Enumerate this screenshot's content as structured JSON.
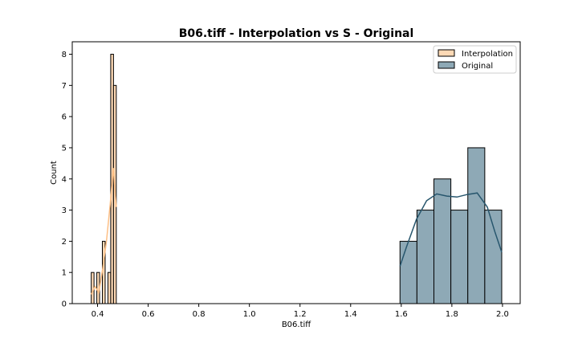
{
  "chart_data": {
    "type": "histogram",
    "title": "B06.tiff - Interpolation vs S - Original",
    "xlabel": "B06.tiff",
    "ylabel": "Count",
    "xlim": [
      0.3,
      2.07
    ],
    "ylim": [
      0,
      8.4
    ],
    "x_ticks": [
      0.4,
      0.6,
      0.8,
      1.0,
      1.2,
      1.4,
      1.6,
      1.8,
      2.0
    ],
    "x_tick_labels": [
      "0.4",
      "0.6",
      "0.8",
      "1.0",
      "1.2",
      "1.4",
      "1.6",
      "1.8",
      "2.0"
    ],
    "y_ticks": [
      0,
      1,
      2,
      3,
      4,
      5,
      6,
      7,
      8
    ],
    "y_tick_labels": [
      "0",
      "1",
      "2",
      "3",
      "4",
      "5",
      "6",
      "7",
      "8"
    ],
    "legend_position": "top-right",
    "series": [
      {
        "name": "Interpolation",
        "color": "#fdd9b5",
        "kde_color": "#fdbf85",
        "bins": [
          {
            "x0": 0.375,
            "x1": 0.386,
            "count": 1
          },
          {
            "x0": 0.386,
            "x1": 0.397,
            "count": 0
          },
          {
            "x0": 0.397,
            "x1": 0.408,
            "count": 1
          },
          {
            "x0": 0.408,
            "x1": 0.419,
            "count": 0
          },
          {
            "x0": 0.419,
            "x1": 0.43,
            "count": 2
          },
          {
            "x0": 0.43,
            "x1": 0.441,
            "count": 0
          },
          {
            "x0": 0.441,
            "x1": 0.452,
            "count": 1
          },
          {
            "x0": 0.452,
            "x1": 0.463,
            "count": 8
          },
          {
            "x0": 0.463,
            "x1": 0.474,
            "count": 7
          }
        ],
        "kde": [
          [
            0.375,
            0.3
          ],
          [
            0.39,
            0.55
          ],
          [
            0.405,
            0.35
          ],
          [
            0.42,
            1.1
          ],
          [
            0.435,
            2.0
          ],
          [
            0.45,
            3.2
          ],
          [
            0.462,
            4.35
          ],
          [
            0.47,
            3.5
          ],
          [
            0.474,
            3.1
          ]
        ]
      },
      {
        "name": "Original",
        "color": "#8ea9b6",
        "kde_color": "#27566d",
        "bins": [
          {
            "x0": 1.595,
            "x1": 1.662,
            "count": 2
          },
          {
            "x0": 1.662,
            "x1": 1.729,
            "count": 3
          },
          {
            "x0": 1.729,
            "x1": 1.796,
            "count": 4
          },
          {
            "x0": 1.796,
            "x1": 1.863,
            "count": 3
          },
          {
            "x0": 1.863,
            "x1": 1.93,
            "count": 5
          },
          {
            "x0": 1.93,
            "x1": 1.997,
            "count": 3
          }
        ],
        "kde": [
          [
            1.595,
            1.2
          ],
          [
            1.62,
            1.8
          ],
          [
            1.66,
            2.7
          ],
          [
            1.7,
            3.3
          ],
          [
            1.74,
            3.52
          ],
          [
            1.78,
            3.45
          ],
          [
            1.82,
            3.42
          ],
          [
            1.86,
            3.5
          ],
          [
            1.9,
            3.55
          ],
          [
            1.94,
            3.1
          ],
          [
            1.97,
            2.3
          ],
          [
            1.997,
            1.65
          ]
        ]
      }
    ]
  }
}
